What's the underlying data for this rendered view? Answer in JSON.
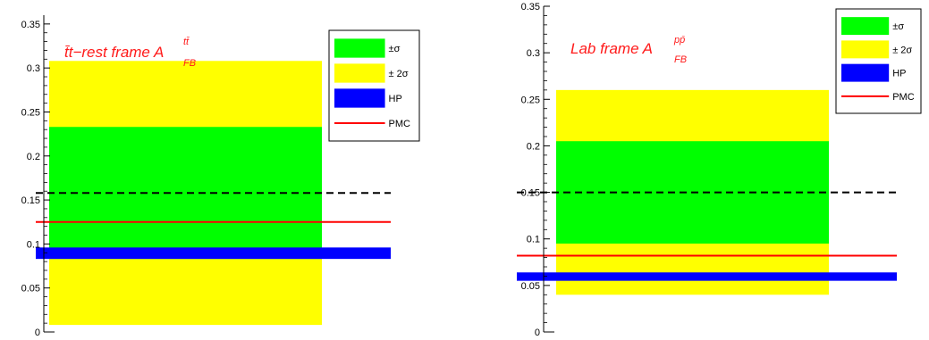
{
  "chart_data": [
    {
      "type": "bar",
      "title_main": "t̄t−rest frame A",
      "title_sup": "tt̄",
      "title_sub": "FB",
      "ylim": [
        0,
        0.36
      ],
      "yticks": [
        0,
        0.05,
        0.1,
        0.15,
        0.2,
        0.25,
        0.3,
        0.35
      ],
      "ytick_labels": [
        "0",
        "0.05",
        "0.1",
        "0.15",
        "0.2",
        "0.25",
        "0.3",
        "0.35"
      ],
      "band_2sigma": [
        0.008,
        0.308
      ],
      "band_1sigma": [
        0.083,
        0.233
      ],
      "hp_band": [
        0.083,
        0.096
      ],
      "pmc_value": 0.125,
      "dashed_value": 0.158,
      "legend": [
        {
          "label": "±σ",
          "color": "#00ff00",
          "kind": "box"
        },
        {
          "label": "± 2σ",
          "color": "#ffff00",
          "kind": "box"
        },
        {
          "label": "HP",
          "color": "#0000ff",
          "kind": "box"
        },
        {
          "label": "PMC",
          "color": "#ff0000",
          "kind": "line"
        }
      ],
      "legend_position": "top-right"
    },
    {
      "type": "bar",
      "title_main": "Lab frame A",
      "title_sup": "pp̄",
      "title_sub": "FB",
      "ylim": [
        0,
        0.35
      ],
      "yticks": [
        0,
        0.05,
        0.1,
        0.15,
        0.2,
        0.25,
        0.3,
        0.35
      ],
      "ytick_labels": [
        "0",
        "0.05",
        "0.1",
        "0.15",
        "0.2",
        "0.25",
        "0.3",
        "0.35"
      ],
      "band_2sigma": [
        0.04,
        0.26
      ],
      "band_1sigma": [
        0.095,
        0.205
      ],
      "hp_band": [
        0.055,
        0.064
      ],
      "pmc_value": 0.082,
      "dashed_value": 0.15,
      "legend": [
        {
          "label": "±σ",
          "color": "#00ff00",
          "kind": "box"
        },
        {
          "label": "± 2σ",
          "color": "#ffff00",
          "kind": "box"
        },
        {
          "label": "HP",
          "color": "#0000ff",
          "kind": "box"
        },
        {
          "label": "PMC",
          "color": "#ff0000",
          "kind": "line"
        }
      ],
      "legend_position": "top-right"
    }
  ]
}
